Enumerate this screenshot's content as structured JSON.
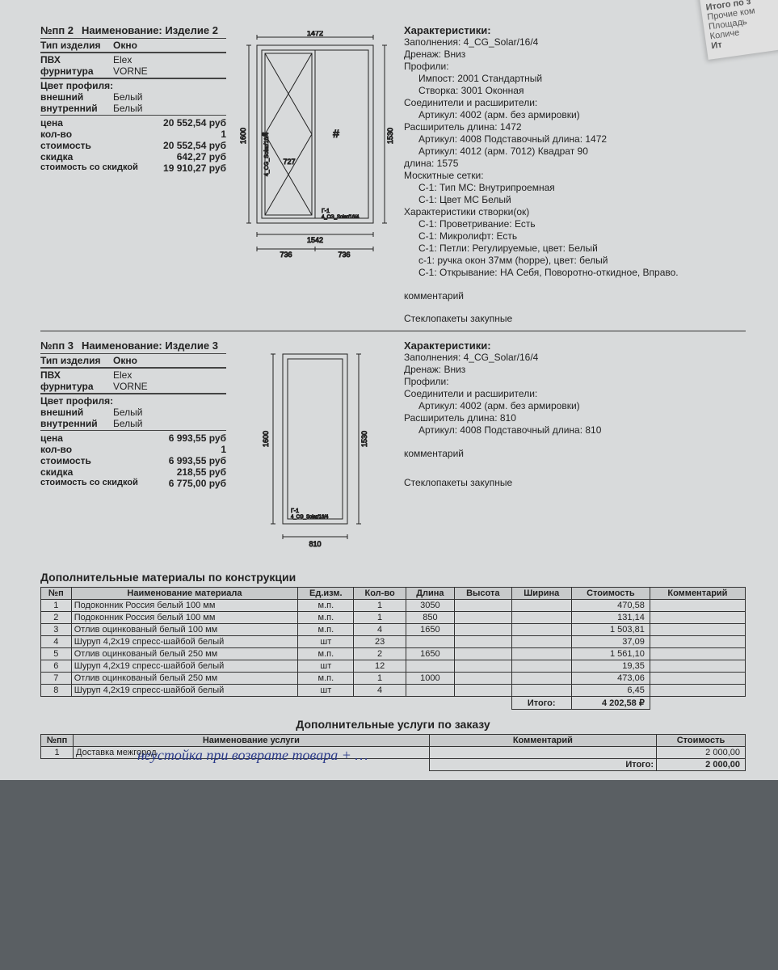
{
  "corner": {
    "l1": "Итого по з",
    "l2": "Прочие ком",
    "l3": "Площадь",
    "l4": "Количе",
    "l5": "Ит"
  },
  "item2": {
    "num": "№пп 2",
    "name_lbl": "Наименование:",
    "name": "Изделие 2",
    "type_lbl": "Тип изделия",
    "type": "Окно",
    "pvc_lbl": "ПВХ",
    "pvc": "Elex",
    "furn_lbl": "фурнитура",
    "furn": "VORNE",
    "color_hdr": "Цвет профиля:",
    "ext_lbl": "внешний",
    "ext": "Белый",
    "int_lbl": "внутренний",
    "int": "Белый",
    "price_lbl": "цена",
    "price": "20 552,54  руб",
    "qty_lbl": "кол-во",
    "qty": "1",
    "cost_lbl": "стоимость",
    "cost": "20 552,54  руб",
    "disc_lbl": "скидка",
    "disc": "642,27  руб",
    "dcost_lbl": "стоимость со скидкой",
    "dcost": "19 910,27  руб",
    "diagram": {
      "top_w": "1472",
      "bot_w": "1542",
      "bot_l": "736",
      "bot_r": "736",
      "h_left": "1600",
      "h_right": "1530",
      "inner": "727",
      "glass_side": "4_CG_Solar/16/4",
      "g1": "Г-1",
      "glass_bot": "4_CG_Solar/16/4"
    },
    "char_title": "Характеристики:",
    "chars": [
      {
        "t": "Заполнения: 4_CG_Solar/16/4",
        "i": 0
      },
      {
        "t": "Дренаж: Вниз",
        "i": 0
      },
      {
        "t": "Профили:",
        "i": 0
      },
      {
        "t": "Импост: 2001 Стандартный",
        "i": 1
      },
      {
        "t": "Створка: 3001 Оконная",
        "i": 1
      },
      {
        "t": "Соединители и расширители:",
        "i": 0
      },
      {
        "t": "Артикул: 4002 (арм. без армировки)",
        "i": 1
      },
      {
        "t": "Расширитель длина: 1472",
        "i": 0
      },
      {
        "t": "Артикул: 4008 Подставочный длина: 1472",
        "i": 1
      },
      {
        "t": "Артикул: 4012 (арм. 7012) Квадрат 90",
        "i": 1
      },
      {
        "t": "длина: 1575",
        "i": 0
      },
      {
        "t": "Москитные сетки:",
        "i": 0
      },
      {
        "t": "С-1: Тип МС: Внутрипроемная",
        "i": 1
      },
      {
        "t": "С-1: Цвет МС Белый",
        "i": 1
      },
      {
        "t": "Характеристики створки(ок)",
        "i": 0
      },
      {
        "t": "С-1: Проветривание: Есть",
        "i": 1
      },
      {
        "t": "С-1: Микролифт: Есть",
        "i": 1
      },
      {
        "t": "С-1: Петли: Регулируемые, цвет: Белый",
        "i": 1
      },
      {
        "t": "с-1: ручка окон 37мм (hoppe), цвет: белый",
        "i": 1
      },
      {
        "t": "С-1: Открывание: НА Себя, Поворотно-откидное, Вправо.",
        "i": 1
      }
    ],
    "comment_lbl": "комментарий",
    "glass_note": "Стеклопакеты закупные"
  },
  "item3": {
    "num": "№пп 3",
    "name_lbl": "Наименование:",
    "name": "Изделие 3",
    "type_lbl": "Тип изделия",
    "type": "Окно",
    "pvc_lbl": "ПВХ",
    "pvc": "Elex",
    "furn_lbl": "фурнитура",
    "furn": "VORNE",
    "color_hdr": "Цвет профиля:",
    "ext_lbl": "внешний",
    "ext": "Белый",
    "int_lbl": "внутренний",
    "int": "Белый",
    "price_lbl": "цена",
    "price": "6 993,55  руб",
    "qty_lbl": "кол-во",
    "qty": "1",
    "cost_lbl": "стоимость",
    "cost": "6 993,55  руб",
    "disc_lbl": "скидка",
    "disc": "218,55  руб",
    "dcost_lbl": "стоимость со скидкой",
    "dcost": "6 775,00  руб",
    "diagram": {
      "w": "810",
      "h_left": "1600",
      "h_right": "1530",
      "g1": "Г-1",
      "glass": "4_CG_Solar/16/4"
    },
    "char_title": "Характеристики:",
    "chars": [
      {
        "t": "Заполнения: 4_CG_Solar/16/4",
        "i": 0
      },
      {
        "t": "Дренаж: Вниз",
        "i": 0
      },
      {
        "t": "Профили:",
        "i": 0
      },
      {
        "t": "Соединители и расширители:",
        "i": 0
      },
      {
        "t": "Артикул: 4002 (арм. без армировки)",
        "i": 1
      },
      {
        "t": "Расширитель длина: 810",
        "i": 0
      },
      {
        "t": "Артикул: 4008 Подставочный длина: 810",
        "i": 1
      }
    ],
    "comment_lbl": "комментарий",
    "glass_note": "Стеклопакеты закупные"
  },
  "materials": {
    "title": "Дополнительные материалы по конструкции",
    "headers": [
      "№п",
      "Наименование материала",
      "Ед.изм.",
      "Кол-во",
      "Длина",
      "Высота",
      "Ширина",
      "Стоимость",
      "Комментарий"
    ],
    "rows": [
      [
        "1",
        "Подоконник Россия белый 100 мм",
        "м.п.",
        "1",
        "3050",
        "",
        "",
        "470,58",
        ""
      ],
      [
        "2",
        "Подоконник Россия белый 100 мм",
        "м.п.",
        "1",
        "850",
        "",
        "",
        "131,14",
        ""
      ],
      [
        "3",
        "Отлив оцинкованый белый 100 мм",
        "м.п.",
        "4",
        "1650",
        "",
        "",
        "1 503,81",
        ""
      ],
      [
        "4",
        "Шуруп 4,2х19 спресс-шайбой белый",
        "шт",
        "23",
        "",
        "",
        "",
        "37,09",
        ""
      ],
      [
        "5",
        "Отлив оцинкованый белый 250 мм",
        "м.п.",
        "2",
        "1650",
        "",
        "",
        "1 561,10",
        ""
      ],
      [
        "6",
        "Шуруп 4,2х19 спресс-шайбой белый",
        "шт",
        "12",
        "",
        "",
        "",
        "19,35",
        ""
      ],
      [
        "7",
        "Отлив оцинкованый белый 250 мм",
        "м.п.",
        "1",
        "1000",
        "",
        "",
        "473,06",
        ""
      ],
      [
        "8",
        "Шуруп 4,2х19 спресс-шайбой белый",
        "шт",
        "4",
        "",
        "",
        "",
        "6,45",
        ""
      ]
    ],
    "total_lbl": "Итого:",
    "total": "4 202,58 ₽"
  },
  "services": {
    "title": "Дополнительные услуги по заказу",
    "headers": [
      "№пп",
      "Наименование услуги",
      "Комментарий",
      "Стоимость"
    ],
    "rows": [
      [
        "1",
        "Доставка межгород",
        "",
        "2 000,00"
      ]
    ],
    "total_lbl": "Итого:",
    "total": "2 000,00",
    "handwriting": "неустойка при возврате товара + … "
  }
}
